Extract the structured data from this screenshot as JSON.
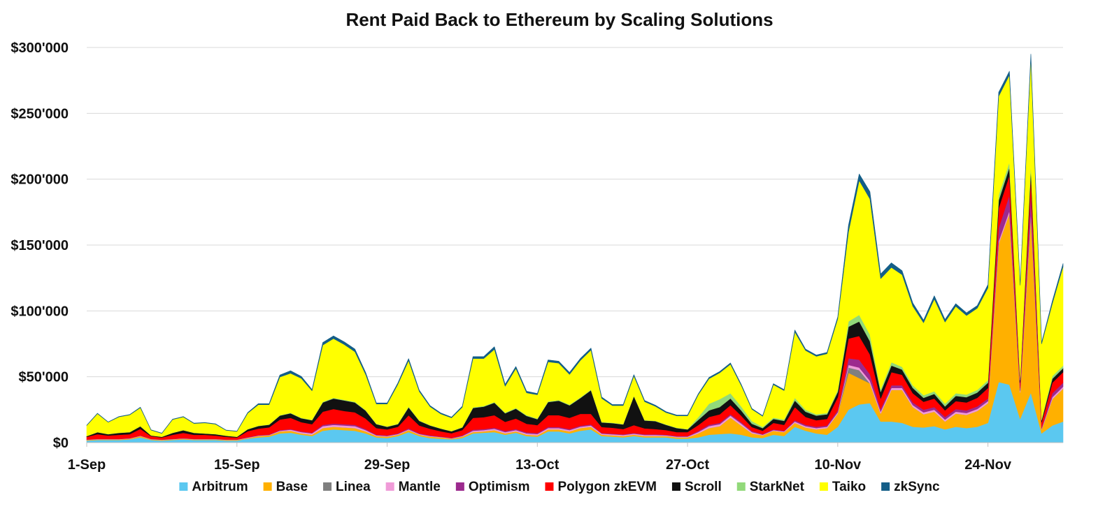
{
  "chart_data": {
    "type": "area",
    "stacked": true,
    "title": "Rent Paid Back to Ethereum by Scaling Solutions",
    "xlabel": "",
    "ylabel": "",
    "ylim": [
      0,
      300000
    ],
    "yticks": [
      0,
      50000,
      100000,
      150000,
      200000,
      250000,
      300000
    ],
    "ytick_labels": [
      "$0",
      "$50'000",
      "$100'000",
      "$150'000",
      "$200'000",
      "$250'000",
      "$300'000"
    ],
    "x_start": "1-Sep",
    "x_end": "1-Dec",
    "xtick_labels": [
      "1-Sep",
      "15-Sep",
      "29-Sep",
      "13-Oct",
      "27-Oct",
      "10-Nov",
      "24-Nov"
    ],
    "grid": "horizontal",
    "legend_position": "bottom",
    "x": [
      "1-Sep",
      "2-Sep",
      "3-Sep",
      "4-Sep",
      "5-Sep",
      "6-Sep",
      "7-Sep",
      "8-Sep",
      "9-Sep",
      "10-Sep",
      "11-Sep",
      "12-Sep",
      "13-Sep",
      "14-Sep",
      "15-Sep",
      "16-Sep",
      "17-Sep",
      "18-Sep",
      "19-Sep",
      "20-Sep",
      "21-Sep",
      "22-Sep",
      "23-Sep",
      "24-Sep",
      "25-Sep",
      "26-Sep",
      "27-Sep",
      "28-Sep",
      "29-Sep",
      "30-Sep",
      "1-Oct",
      "2-Oct",
      "3-Oct",
      "4-Oct",
      "5-Oct",
      "6-Oct",
      "7-Oct",
      "8-Oct",
      "9-Oct",
      "10-Oct",
      "11-Oct",
      "12-Oct",
      "13-Oct",
      "14-Oct",
      "15-Oct",
      "16-Oct",
      "17-Oct",
      "18-Oct",
      "19-Oct",
      "20-Oct",
      "21-Oct",
      "22-Oct",
      "23-Oct",
      "24-Oct",
      "25-Oct",
      "26-Oct",
      "27-Oct",
      "28-Oct",
      "29-Oct",
      "30-Oct",
      "31-Oct",
      "1-Nov",
      "2-Nov",
      "3-Nov",
      "4-Nov",
      "5-Nov",
      "6-Nov",
      "7-Nov",
      "8-Nov",
      "9-Nov",
      "10-Nov",
      "11-Nov",
      "12-Nov",
      "13-Nov",
      "14-Nov",
      "15-Nov",
      "16-Nov",
      "17-Nov",
      "18-Nov",
      "19-Nov",
      "20-Nov",
      "21-Nov",
      "22-Nov",
      "23-Nov",
      "24-Nov",
      "25-Nov",
      "26-Nov",
      "27-Nov",
      "28-Nov",
      "29-Nov",
      "30-Nov",
      "1-Dec"
    ],
    "series": [
      {
        "name": "Arbitrum",
        "color": "#5bc8f0",
        "values": [
          1500,
          2000,
          2000,
          2000,
          2500,
          4000,
          2000,
          1500,
          2000,
          2500,
          2000,
          2000,
          2000,
          1500,
          1500,
          3000,
          4000,
          4500,
          7000,
          7500,
          6000,
          5000,
          9000,
          10000,
          9500,
          9000,
          7000,
          4000,
          3500,
          5000,
          8000,
          5000,
          3500,
          3000,
          2500,
          3500,
          7000,
          7500,
          8000,
          6000,
          7500,
          5000,
          4500,
          8500,
          8500,
          7000,
          9000,
          10000,
          5000,
          4500,
          4000,
          5000,
          4000,
          4000,
          4000,
          3000,
          3000,
          4000,
          6000,
          6500,
          7000,
          6000,
          4000,
          3500,
          6000,
          5000,
          12000,
          9000,
          7000,
          6000,
          12000,
          25000,
          29000,
          30000,
          16000,
          16000,
          15000,
          12000,
          11500,
          12500,
          10000,
          12000,
          11000,
          12000,
          15000,
          46000,
          44000,
          18000,
          38000,
          7000,
          13000,
          16000
        ]
      },
      {
        "name": "Base",
        "color": "#ffb000",
        "values": [
          500,
          500,
          500,
          500,
          500,
          1000,
          500,
          500,
          500,
          500,
          500,
          500,
          500,
          500,
          500,
          500,
          1000,
          1000,
          1500,
          1500,
          1000,
          1000,
          2000,
          2000,
          2000,
          2000,
          1500,
          1000,
          1000,
          1000,
          1500,
          1000,
          1000,
          1000,
          500,
          1000,
          1000,
          1000,
          1500,
          1000,
          1000,
          1000,
          1000,
          1500,
          1500,
          1500,
          2000,
          2000,
          1000,
          1000,
          1000,
          1000,
          1000,
          1000,
          1000,
          1000,
          1000,
          3000,
          5000,
          6000,
          12000,
          7000,
          3000,
          2000,
          3000,
          3000,
          3000,
          2500,
          3000,
          5000,
          10000,
          28000,
          20000,
          15000,
          6000,
          24000,
          25000,
          15000,
          10000,
          11000,
          6000,
          10000,
          10000,
          12000,
          15000,
          105000,
          130000,
          20000,
          135000,
          3000,
          20000,
          25000
        ]
      },
      {
        "name": "Linea",
        "color": "#7f7f7f",
        "values": [
          0,
          0,
          0,
          0,
          0,
          0,
          0,
          0,
          0,
          0,
          0,
          0,
          0,
          0,
          0,
          0,
          0,
          0,
          0,
          0,
          0,
          0,
          0,
          0,
          0,
          0,
          0,
          0,
          0,
          0,
          0,
          0,
          0,
          0,
          0,
          0,
          0,
          0,
          0,
          0,
          0,
          0,
          0,
          0,
          0,
          0,
          0,
          0,
          0,
          0,
          0,
          0,
          0,
          0,
          0,
          0,
          0,
          0,
          0,
          0,
          0,
          0,
          0,
          0,
          0,
          0,
          0,
          0,
          0,
          0,
          0,
          4000,
          6000,
          0,
          0,
          0,
          0,
          0,
          0,
          0,
          0,
          0,
          0,
          0,
          0,
          0,
          0,
          0,
          0,
          0,
          0,
          0
        ]
      },
      {
        "name": "Mantle",
        "color": "#f09bd8",
        "values": [
          200,
          200,
          200,
          200,
          200,
          200,
          200,
          200,
          200,
          200,
          200,
          200,
          200,
          200,
          200,
          300,
          300,
          300,
          500,
          800,
          1000,
          1000,
          1500,
          1500,
          1500,
          1500,
          1000,
          500,
          500,
          500,
          500,
          500,
          500,
          300,
          300,
          500,
          1000,
          1000,
          1000,
          1000,
          1000,
          1000,
          1000,
          1000,
          1000,
          1000,
          1000,
          1000,
          800,
          800,
          800,
          800,
          800,
          800,
          500,
          500,
          500,
          1000,
          1500,
          1500,
          1500,
          1500,
          1000,
          500,
          500,
          500,
          1000,
          1000,
          1000,
          1000,
          1000,
          2000,
          2000,
          2000,
          1500,
          1500,
          1500,
          1500,
          1500,
          1500,
          1500,
          1500,
          1500,
          1500,
          1500,
          2000,
          2000,
          1500,
          2000,
          500,
          1500,
          1500
        ]
      },
      {
        "name": "Optimism",
        "color": "#9c2a8e",
        "values": [
          200,
          200,
          200,
          200,
          200,
          200,
          200,
          200,
          200,
          200,
          200,
          200,
          200,
          200,
          200,
          300,
          300,
          300,
          500,
          500,
          500,
          500,
          1000,
          1000,
          1000,
          1000,
          800,
          500,
          500,
          500,
          800,
          500,
          500,
          300,
          300,
          500,
          800,
          800,
          800,
          800,
          800,
          800,
          800,
          800,
          800,
          800,
          800,
          800,
          500,
          500,
          500,
          500,
          500,
          500,
          500,
          500,
          500,
          800,
          1000,
          1000,
          1000,
          1000,
          800,
          500,
          500,
          500,
          1000,
          1000,
          1000,
          1000,
          1500,
          5000,
          6000,
          5000,
          2000,
          2000,
          2000,
          2000,
          2000,
          2000,
          2000,
          2000,
          2000,
          2000,
          2000,
          10000,
          12000,
          2000,
          15000,
          1000,
          3000,
          3000
        ]
      },
      {
        "name": "Polygon zkEVM",
        "color": "#ff0000",
        "values": [
          2000,
          3500,
          2500,
          3000,
          3000,
          5000,
          2000,
          1500,
          3000,
          4000,
          3000,
          3000,
          2500,
          2000,
          1500,
          4500,
          5000,
          5500,
          8000,
          8500,
          7000,
          6500,
          10000,
          11000,
          10000,
          9500,
          8000,
          5000,
          4500,
          5000,
          10000,
          6000,
          5000,
          4000,
          3500,
          4000,
          9000,
          9000,
          9500,
          7000,
          8000,
          6500,
          6000,
          9000,
          9000,
          8500,
          9000,
          8000,
          4500,
          4500,
          4000,
          6000,
          4500,
          4000,
          3500,
          3000,
          3000,
          4500,
          6000,
          6500,
          7000,
          5000,
          3000,
          2500,
          5000,
          4500,
          10000,
          6000,
          5000,
          5000,
          10000,
          15000,
          18000,
          15000,
          8000,
          10000,
          8000,
          7000,
          6000,
          6500,
          5000,
          6000,
          6000,
          6500,
          8000,
          15000,
          15000,
          4000,
          12000,
          4000,
          8000,
          8000
        ]
      },
      {
        "name": "Scroll",
        "color": "#111111",
        "values": [
          500,
          1500,
          1000,
          1500,
          1500,
          2000,
          500,
          500,
          1500,
          2000,
          1500,
          1000,
          1000,
          800,
          500,
          1500,
          2000,
          2000,
          3000,
          3500,
          3000,
          3000,
          7000,
          8000,
          8000,
          7500,
          6000,
          3000,
          2000,
          2000,
          6000,
          3500,
          2500,
          2000,
          1500,
          2000,
          7500,
          8000,
          9500,
          6500,
          7500,
          6000,
          4500,
          10000,
          11000,
          9500,
          12000,
          18000,
          3500,
          3500,
          3500,
          22000,
          6000,
          6000,
          4000,
          3000,
          2000,
          4000,
          5000,
          5500,
          5000,
          4000,
          2500,
          2000,
          3000,
          3000,
          5000,
          4000,
          3500,
          3500,
          4000,
          9000,
          11000,
          10000,
          5000,
          5000,
          4000,
          4000,
          3000,
          3500,
          3000,
          4000,
          4000,
          4000,
          4000,
          6000,
          6000,
          2000,
          6000,
          1500,
          3000,
          3000
        ]
      },
      {
        "name": "StarkNet",
        "color": "#92d97a",
        "values": [
          100,
          100,
          100,
          100,
          100,
          100,
          100,
          100,
          100,
          100,
          100,
          100,
          100,
          100,
          100,
          200,
          200,
          200,
          300,
          300,
          300,
          300,
          500,
          500,
          500,
          500,
          400,
          300,
          300,
          300,
          500,
          300,
          300,
          200,
          200,
          300,
          500,
          500,
          500,
          500,
          500,
          500,
          500,
          500,
          500,
          500,
          500,
          500,
          300,
          300,
          300,
          300,
          300,
          300,
          300,
          300,
          300,
          2000,
          5000,
          6000,
          4000,
          3000,
          2000,
          1000,
          1000,
          1000,
          2000,
          1500,
          1000,
          1000,
          1500,
          4000,
          5000,
          5000,
          2000,
          2500,
          2000,
          2000,
          2000,
          2000,
          2000,
          2000,
          2000,
          2000,
          2000,
          4000,
          4000,
          2000,
          4000,
          1000,
          2000,
          2000
        ]
      },
      {
        "name": "Taiko",
        "color": "#ffff00",
        "values": [
          8000,
          14000,
          9000,
          12000,
          13000,
          14000,
          4000,
          2500,
          10000,
          10000,
          7000,
          8000,
          7500,
          4000,
          4000,
          12000,
          16000,
          15000,
          29000,
          30000,
          30000,
          22000,
          43000,
          45000,
          42000,
          38000,
          27000,
          15000,
          17000,
          30000,
          35000,
          22000,
          14000,
          11000,
          10000,
          15000,
          37000,
          36000,
          40000,
          20000,
          30000,
          17000,
          18000,
          30000,
          28000,
          23000,
          28000,
          30000,
          18000,
          13000,
          14000,
          15000,
          14000,
          11000,
          9000,
          9000,
          10000,
          17000,
          19000,
          20000,
          22000,
          16000,
          9000,
          8000,
          25000,
          22000,
          50000,
          45000,
          44000,
          45000,
          54000,
          68000,
          102000,
          103000,
          84000,
          72000,
          70000,
          60000,
          55000,
          70000,
          62000,
          66000,
          60000,
          62000,
          70000,
          75000,
          66000,
          70000,
          80000,
          57000,
          55000,
          75000
        ]
      },
      {
        "name": "zkSync",
        "color": "#145e88",
        "values": [
          200,
          300,
          200,
          300,
          300,
          400,
          200,
          200,
          300,
          300,
          300,
          300,
          300,
          200,
          200,
          500,
          800,
          800,
          1500,
          2000,
          1500,
          1000,
          2000,
          2000,
          2000,
          2000,
          1500,
          800,
          800,
          1000,
          1500,
          1000,
          800,
          700,
          600,
          800,
          1500,
          1500,
          2000,
          1500,
          1500,
          1200,
          1000,
          1500,
          1500,
          1500,
          1500,
          1500,
          1000,
          800,
          800,
          1000,
          900,
          800,
          700,
          600,
          600,
          800,
          1000,
          1000,
          1000,
          800,
          600,
          500,
          800,
          800,
          1500,
          1000,
          1000,
          1000,
          1500,
          5000,
          5000,
          5500,
          3500,
          3500,
          3000,
          2500,
          2000,
          2500,
          2000,
          2000,
          2000,
          2000,
          2500,
          3000,
          3000,
          1000,
          3000,
          1000,
          2000,
          2500
        ]
      }
    ]
  }
}
